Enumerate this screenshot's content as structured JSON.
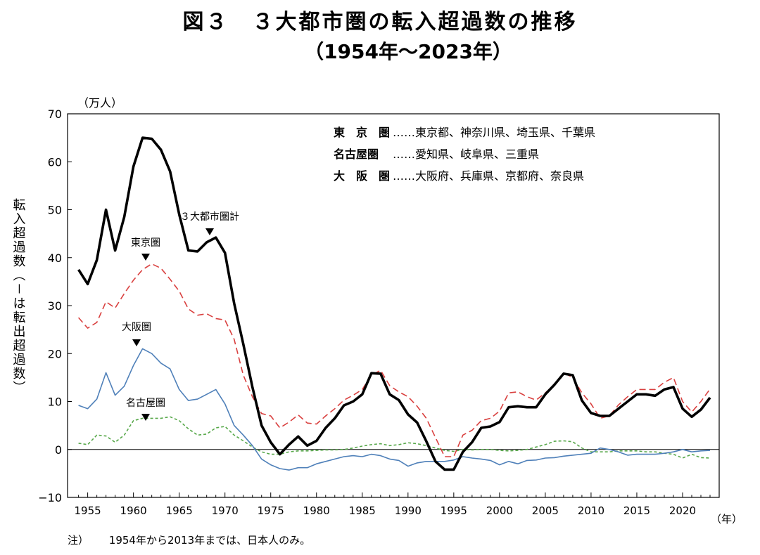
{
  "title": "図３　３大都市圏の転入超過数の推移",
  "subtitle": "（1954年～2023年）",
  "note": {
    "mark": "注）",
    "text": "1954年から2013年までは、日本人のみ。"
  },
  "chart_data": {
    "type": "line",
    "y_unit": "（万人）",
    "x_unit": "（年）",
    "ylabel": "転入超過数（－は転出超過数）",
    "ylim": [
      -10,
      70
    ],
    "xlim": [
      1954,
      2023
    ],
    "y_ticks": [
      "70",
      "60",
      "50",
      "40",
      "30",
      "20",
      "10",
      "0",
      "−10"
    ],
    "x_ticks": [
      "1955",
      "1960",
      "1965",
      "1970",
      "1975",
      "1980",
      "1985",
      "1990",
      "1995",
      "2000",
      "2005",
      "2010",
      "2015",
      "2020"
    ],
    "x": [
      1954,
      1955,
      1956,
      1957,
      1958,
      1959,
      1960,
      1961,
      1962,
      1963,
      1964,
      1965,
      1966,
      1967,
      1968,
      1969,
      1970,
      1971,
      1972,
      1973,
      1974,
      1975,
      1976,
      1977,
      1978,
      1979,
      1980,
      1981,
      1982,
      1983,
      1984,
      1985,
      1986,
      1987,
      1988,
      1989,
      1990,
      1991,
      1992,
      1993,
      1994,
      1995,
      1996,
      1997,
      1998,
      1999,
      2000,
      2001,
      2002,
      2003,
      2004,
      2005,
      2006,
      2007,
      2008,
      2009,
      2010,
      2011,
      2012,
      2013,
      2014,
      2015,
      2016,
      2017,
      2018,
      2019,
      2020,
      2021,
      2022,
      2023
    ],
    "series": [
      {
        "name": "３大都市圏計",
        "color": "#000000",
        "style": "solid-thick",
        "values": [
          37.5,
          34.5,
          39.5,
          50,
          41.5,
          48.5,
          59,
          65,
          64.8,
          62.5,
          58,
          49,
          41.5,
          41.3,
          43.2,
          44.2,
          41,
          30.5,
          22,
          13,
          5,
          1.5,
          -1,
          1,
          2.7,
          0.8,
          1.8,
          4.5,
          6.5,
          9.2,
          10,
          11.5,
          15.9,
          15.8,
          11.5,
          10.3,
          7.3,
          5.6,
          1.7,
          -2.5,
          -4.2,
          -4.2,
          -0.5,
          1.5,
          4.5,
          4.8,
          5.7,
          8.8,
          9,
          8.8,
          8.8,
          11.5,
          13.5,
          15.8,
          15.5,
          10.2,
          7.6,
          7,
          7,
          8.5,
          10,
          11.5,
          11.5,
          11.2,
          12.5,
          13,
          8.5,
          6.8,
          8.3,
          10.8
        ]
      },
      {
        "name": "東京圏",
        "color": "#d9403f",
        "style": "dashed",
        "values": [
          27.5,
          25.3,
          26.5,
          30.8,
          29.5,
          32.5,
          35.3,
          37.5,
          38.7,
          37.8,
          35.5,
          33,
          29.3,
          28,
          28.3,
          27.3,
          27,
          23,
          15.5,
          11,
          7.5,
          7,
          4.5,
          5.7,
          7.2,
          5.5,
          5.3,
          7,
          8.5,
          10.3,
          11.3,
          12.5,
          15.5,
          16.5,
          13.3,
          12,
          11,
          9,
          6.5,
          2.5,
          -1.5,
          -1.5,
          3,
          4,
          6,
          6.5,
          8,
          11.8,
          12,
          11,
          10.3,
          11.8,
          13.5,
          16,
          15,
          11.8,
          9.5,
          6.5,
          7,
          9.3,
          11,
          12.5,
          12.5,
          12.5,
          14,
          15,
          10,
          7.8,
          10,
          12.6
        ]
      },
      {
        "name": "大阪圏",
        "color": "#4f80b9",
        "style": "solid",
        "values": [
          9.2,
          8.5,
          10.5,
          16,
          11.3,
          13.2,
          17.5,
          21,
          20,
          18,
          16.8,
          12.5,
          10.2,
          10.5,
          11.5,
          12.5,
          9.5,
          5,
          3,
          0.8,
          -2,
          -3.2,
          -4,
          -4.3,
          -3.8,
          -3.8,
          -3,
          -2.5,
          -2,
          -1.5,
          -1.3,
          -1.5,
          -1,
          -1.3,
          -2,
          -2.3,
          -3.5,
          -2.8,
          -2.5,
          -2.5,
          -2.5,
          -2.2,
          -1.5,
          -1.8,
          -2,
          -2.3,
          -3.2,
          -2.5,
          -3,
          -2.3,
          -2.2,
          -1.8,
          -1.7,
          -1.4,
          -1.2,
          -1,
          -0.8,
          0.3,
          0,
          -0.5,
          -1.2,
          -1,
          -1,
          -1,
          -0.8,
          -0.5,
          0,
          -0.5,
          -0.3,
          -0.2
        ]
      },
      {
        "name": "名古屋圏",
        "color": "#57a84a",
        "style": "dotted",
        "values": [
          1.3,
          1,
          3,
          2.8,
          1.5,
          3,
          6,
          6.5,
          6.5,
          6.5,
          6.8,
          6,
          4.3,
          3,
          3.2,
          4.5,
          4.8,
          3,
          1.8,
          0.5,
          -0.5,
          -1,
          -1,
          -0.5,
          -0.3,
          -0.3,
          -0.2,
          -0.1,
          -0.1,
          0,
          0.3,
          0.7,
          1,
          1.2,
          0.8,
          1,
          1.4,
          1.2,
          0.8,
          0.3,
          -0.2,
          -0.4,
          0,
          -0.1,
          0,
          0,
          -0.2,
          -0.3,
          -0.2,
          0,
          0.5,
          1,
          1.7,
          1.8,
          1.6,
          0.3,
          -0.5,
          -0.5,
          -0.5,
          -0.3,
          -0.3,
          -0.3,
          -0.5,
          -0.5,
          -0.8,
          -1,
          -1.8,
          -1,
          -1.7,
          -1.8
        ]
      }
    ],
    "series_labels": [
      {
        "series": "３大都市圏計",
        "text": "３大都市圏計"
      },
      {
        "series": "東京圏",
        "text": "東京圏"
      },
      {
        "series": "大阪圏",
        "text": "大阪圏"
      },
      {
        "series": "名古屋圏",
        "text": "名古屋圏"
      }
    ],
    "legend": [
      {
        "name": "東　京　圏",
        "members": "……東京都、神奈川県、埼玉県、千葉県"
      },
      {
        "name": "名古屋圏",
        "members": "……愛知県、岐阜県、三重県"
      },
      {
        "name": "大　阪　圏",
        "members": "……大阪府、兵庫県、京都府、奈良県"
      }
    ],
    "legend_position": "top-right",
    "grid": false
  }
}
